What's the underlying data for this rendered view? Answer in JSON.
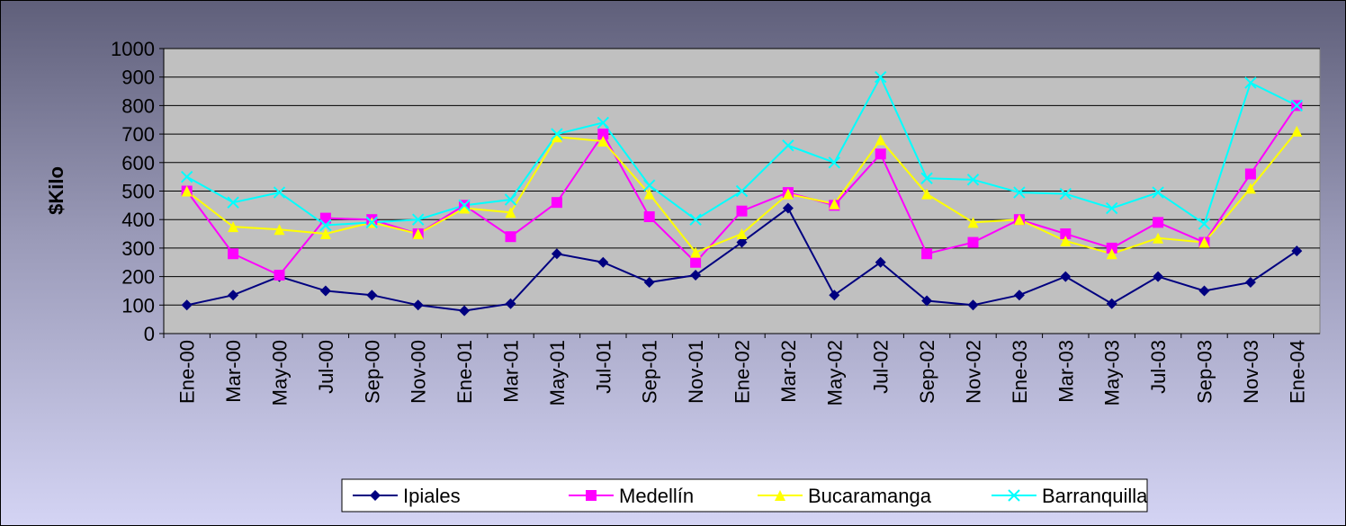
{
  "chart_data": {
    "type": "line",
    "ylabel": "$Kilo",
    "categories": [
      "Ene-00",
      "Mar-00",
      "May-00",
      "Jul-00",
      "Sep-00",
      "Nov-00",
      "Ene-01",
      "Mar-01",
      "May-01",
      "Jul-01",
      "Sep-01",
      "Nov-01",
      "Ene-02",
      "Mar-02",
      "May-02",
      "Jul-02",
      "Sep-02",
      "Nov-02",
      "Ene-03",
      "Mar-03",
      "May-03",
      "Jul-03",
      "Sep-03",
      "Nov-03",
      "Ene-04"
    ],
    "series": [
      {
        "name": "Ipiales",
        "color": "#000080",
        "marker": "diamond",
        "values": [
          100,
          135,
          200,
          150,
          135,
          100,
          80,
          105,
          280,
          250,
          180,
          205,
          320,
          440,
          135,
          250,
          115,
          100,
          135,
          200,
          105,
          200,
          150,
          180,
          290
        ]
      },
      {
        "name": "Medellín",
        "color": "#ff00ff",
        "marker": "square",
        "values": [
          500,
          280,
          205,
          405,
          400,
          350,
          450,
          340,
          460,
          700,
          410,
          250,
          430,
          495,
          450,
          630,
          280,
          320,
          400,
          350,
          300,
          390,
          320,
          560,
          800
        ]
      },
      {
        "name": "Bucaramanga",
        "color": "#ffff00",
        "marker": "triangle",
        "values": [
          500,
          375,
          365,
          350,
          390,
          350,
          440,
          425,
          690,
          675,
          490,
          285,
          350,
          490,
          455,
          680,
          490,
          390,
          400,
          325,
          280,
          335,
          320,
          510,
          710
        ]
      },
      {
        "name": "Barranquilla",
        "color": "#00ffff",
        "marker": "x",
        "values": [
          550,
          460,
          495,
          380,
          390,
          400,
          450,
          470,
          700,
          740,
          520,
          400,
          500,
          660,
          600,
          900,
          545,
          540,
          495,
          490,
          440,
          495,
          385,
          880,
          800
        ]
      }
    ],
    "ylim": [
      0,
      1000
    ],
    "yticks": [
      0,
      100,
      200,
      300,
      400,
      500,
      600,
      700,
      800,
      900,
      1000
    ],
    "grid": true,
    "legend": "bottom"
  }
}
